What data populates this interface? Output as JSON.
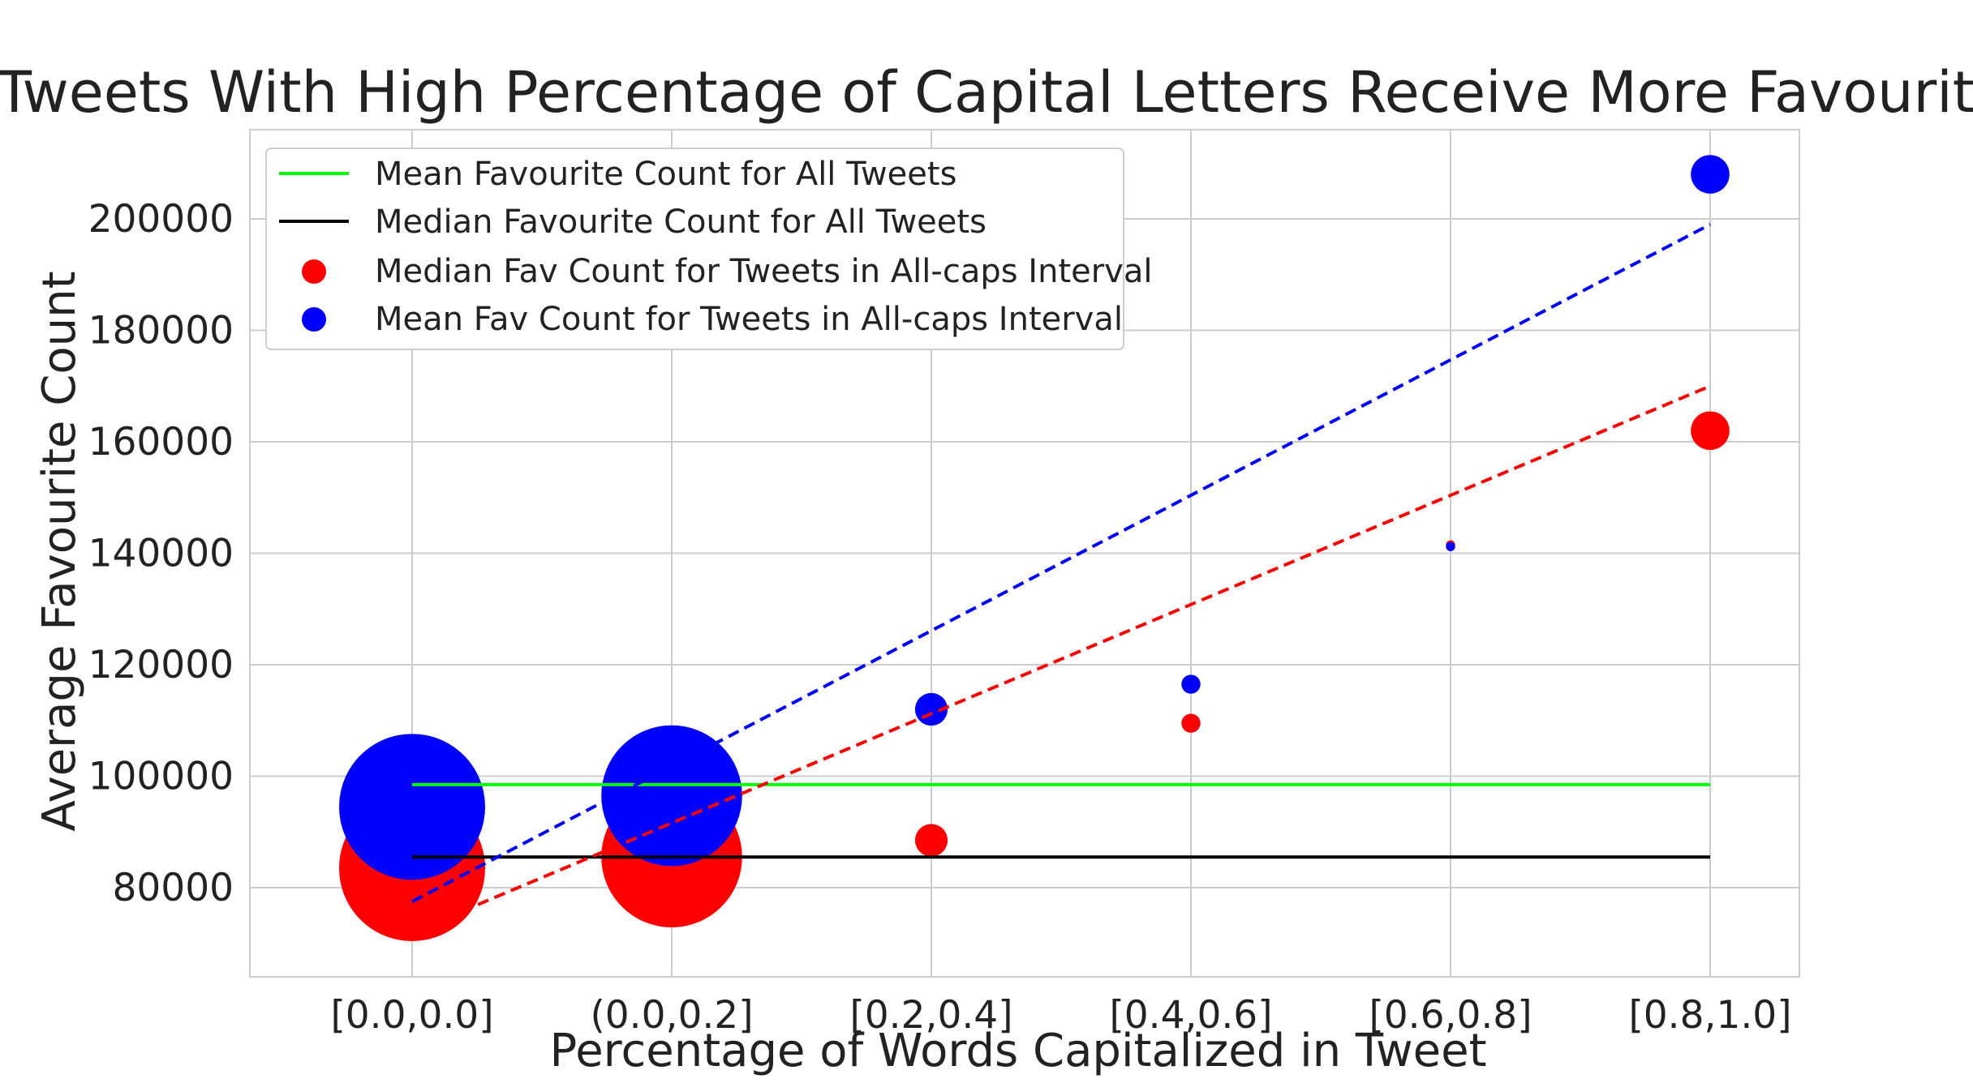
{
  "chart_data": {
    "type": "scatter",
    "title": "Tweets With High Percentage of Capital Letters Receive More Favourites",
    "xlabel": "Percentage of Words Capitalized in Tweet",
    "ylabel": "Average Favourite Count",
    "categories": [
      "[0.0,0.0]",
      "(0.0,0.2]",
      "[0.2,0.4]",
      "[0.4,0.6]",
      "[0.6,0.8]",
      "[0.8,1.0]"
    ],
    "ylim": [
      64000,
      216000
    ],
    "yticks": [
      80000,
      100000,
      120000,
      140000,
      160000,
      180000,
      200000
    ],
    "ytick_labels": [
      "80000",
      "100000",
      "120000",
      "140000",
      "160000",
      "180000",
      "200000"
    ],
    "grid": true,
    "legend_position": "top-left",
    "series": [
      {
        "name": "Median Fav Count for Tweets in All-caps Interval",
        "kind": "scatter",
        "color": "#ff0000",
        "values": [
          83500,
          85500,
          88500,
          109500,
          141500,
          162000
        ],
        "relative_marker_size": [
          1.0,
          0.93,
          0.05,
          0.017,
          0.004,
          0.07
        ]
      },
      {
        "name": "Mean Fav Count for Tweets in All-caps Interval",
        "kind": "scatter",
        "color": "#0000ff",
        "values": [
          94500,
          96500,
          112000,
          116500,
          141200,
          208000
        ],
        "relative_marker_size": [
          1.0,
          0.93,
          0.05,
          0.017,
          0.004,
          0.07
        ]
      },
      {
        "name": "Mean Favourite Count for All Tweets",
        "kind": "hline",
        "color": "#00ff00",
        "value": 98500
      },
      {
        "name": "Median Favourite Count for All Tweets",
        "kind": "hline",
        "color": "#000000",
        "value": 85500
      },
      {
        "name": "median-trend",
        "kind": "dashed-trend",
        "color": "#ff0000",
        "start": 72000,
        "end": 170000
      },
      {
        "name": "mean-trend",
        "kind": "dashed-trend",
        "color": "#0000ff",
        "start": 77500,
        "end": 199000
      }
    ]
  }
}
